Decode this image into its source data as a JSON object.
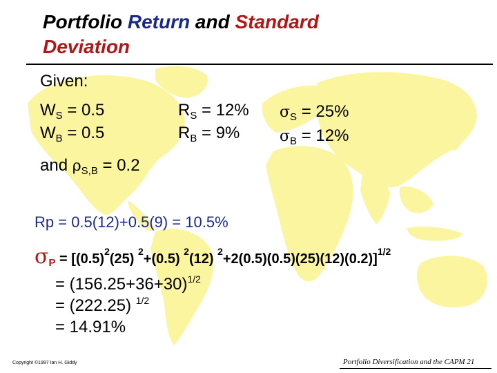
{
  "title": {
    "part1": "Portfolio ",
    "part2": "Return",
    "part3": " and ",
    "part4": "Standard",
    "part5": "Deviation"
  },
  "given": {
    "label": "Given:",
    "ws": {
      "sym": "W",
      "sub": "S",
      "val": " = 0.5"
    },
    "wb": {
      "sym": "W",
      "sub": "B",
      "val": " = 0.5"
    },
    "rs": {
      "sym": "R",
      "sub": "S",
      "val": " = 12%"
    },
    "rb": {
      "sym": "R",
      "sub": "B",
      "val": " = 9%"
    },
    "ss": {
      "sym": "σ",
      "sub": "S",
      "val": " = 25%"
    },
    "sb": {
      "sym": "σ",
      "sub": "B",
      "val": " = 12%"
    },
    "rho": {
      "pre": "and  ",
      "sym": "ρ",
      "sub": "S,B",
      "val": " = 0.2"
    }
  },
  "rp_line": "Rp = 0.5(12)+0.5(9) = 10.5%",
  "sigma_p": {
    "sym": "σ",
    "sub": "P",
    "f1": " = [(0.5)",
    "e1": "2",
    "f2": "(25) ",
    "e2": "2",
    "f3": "+(0.5) ",
    "e3": "2",
    "f4": "(12) ",
    "e4": "2",
    "f5": "+2(0.5)(0.5)(25)(12)(0.2)]",
    "e5": "1/2"
  },
  "steps": [
    {
      "text": "= (156.25+36+30)",
      "exp": "1/2"
    },
    {
      "text": "= (222.25) ",
      "exp": "1/2"
    },
    {
      "text": "= 14.91%",
      "exp": ""
    }
  ],
  "footer": {
    "copyright": "Copyright ©1997 Ian H. Giddy",
    "slide_label": "Portfolio Diversification and the CAPM  21"
  },
  "colors": {
    "map": "#fbf5a0",
    "title_blue": "#1a2a88",
    "title_red": "#b01818",
    "rp_blue": "#1a2a88",
    "sigma_red": "#b01818"
  }
}
